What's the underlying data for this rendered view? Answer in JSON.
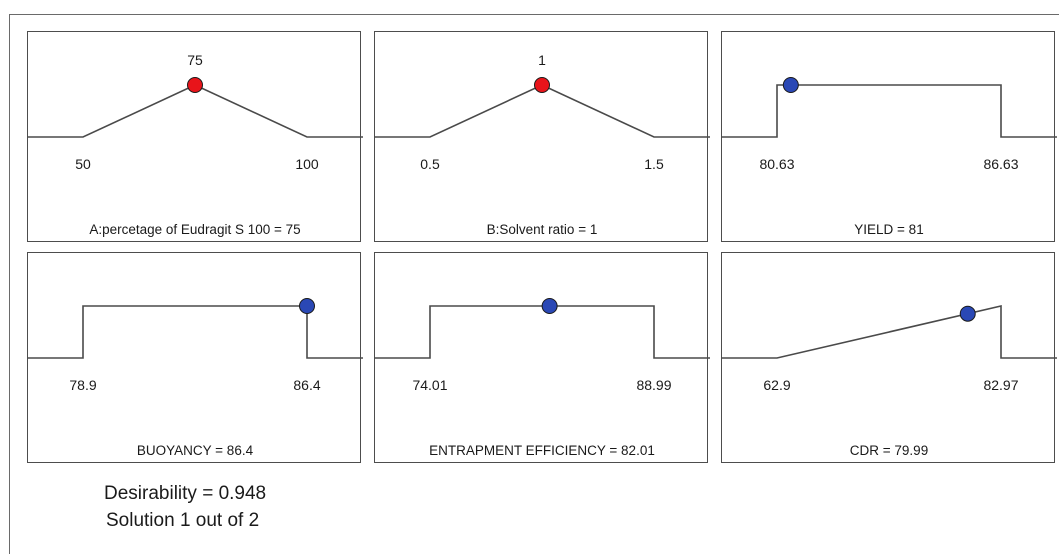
{
  "chart_data": [
    {
      "type": "line",
      "factor_type": "factor",
      "title": "A:percetage of Eudragit S 100 = 75",
      "value_label": "75",
      "x": [
        50,
        75,
        100
      ],
      "y": [
        0,
        1,
        0
      ],
      "xlim": [
        50,
        100
      ],
      "range_labels": [
        "50",
        "100"
      ],
      "current": 75,
      "marker_color": "#e8141a"
    },
    {
      "type": "line",
      "factor_type": "factor",
      "title": "B:Solvent ratio = 1",
      "value_label": "1",
      "x": [
        0.5,
        1,
        1.5
      ],
      "y": [
        0,
        1,
        0
      ],
      "xlim": [
        0.5,
        1.5
      ],
      "range_labels": [
        "0.5",
        "1.5"
      ],
      "current": 1,
      "marker_color": "#e8141a"
    },
    {
      "type": "line",
      "factor_type": "response",
      "title": "YIELD = 81",
      "x": [
        80.63,
        80.63,
        86.63,
        86.63
      ],
      "y": [
        0,
        1,
        1,
        0
      ],
      "xlim": [
        80.63,
        86.63
      ],
      "range_labels": [
        "80.63",
        "86.63"
      ],
      "current": 81,
      "marker_color": "#2a48b5"
    },
    {
      "type": "line",
      "factor_type": "response",
      "title": "BUOYANCY = 86.4",
      "x": [
        78.9,
        78.9,
        86.4,
        86.4
      ],
      "y": [
        0,
        1,
        1,
        0
      ],
      "xlim": [
        78.9,
        86.4
      ],
      "range_labels": [
        "78.9",
        "86.4"
      ],
      "current": 86.4,
      "marker_color": "#2a48b5"
    },
    {
      "type": "line",
      "factor_type": "response",
      "title": "ENTRAPMENT EFFICIENCY = 82.01",
      "x": [
        74.01,
        74.01,
        88.99,
        88.99
      ],
      "y": [
        0,
        1,
        1,
        0
      ],
      "xlim": [
        74.01,
        88.99
      ],
      "range_labels": [
        "74.01",
        "88.99"
      ],
      "current": 82.01,
      "marker_color": "#2a48b5"
    },
    {
      "type": "line",
      "factor_type": "response",
      "title": "CDR = 79.99",
      "x": [
        62.9,
        82.97,
        82.97
      ],
      "y": [
        0,
        1,
        0
      ],
      "xlim": [
        62.9,
        82.97
      ],
      "range_labels": [
        "62.9",
        "82.97"
      ],
      "current": 79.99,
      "marker_color": "#2a48b5"
    }
  ],
  "footer": {
    "desirability": "Desirability = 0.948",
    "solution": "Solution 1 out of 2"
  }
}
